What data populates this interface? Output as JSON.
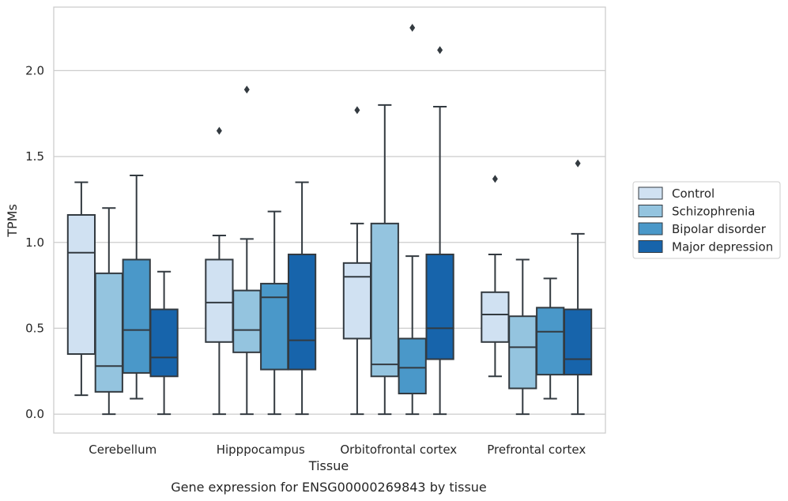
{
  "chart_data": {
    "type": "box",
    "title": "",
    "caption": "Gene expression for ENSG00000269843 by tissue",
    "xlabel": "Tissue",
    "ylabel": "TPMs",
    "ylim": [
      -0.11,
      2.37
    ],
    "yticks": [
      0.0,
      0.5,
      1.0,
      1.5,
      2.0
    ],
    "ytick_labels": [
      "0.0",
      "0.5",
      "1.0",
      "1.5",
      "2.0"
    ],
    "grid": "horizontal",
    "legend_position": "right",
    "categories": [
      "Cerebellum",
      "Hipppocampus",
      "Orbitofrontal cortex",
      "Prefrontal cortex"
    ],
    "series": [
      {
        "name": "Control",
        "color": "#d0e1f2",
        "boxes": [
          {
            "min": 0.11,
            "q1": 0.35,
            "median": 0.94,
            "q3": 1.16,
            "max": 1.35,
            "outliers": []
          },
          {
            "min": 0.0,
            "q1": 0.42,
            "median": 0.65,
            "q3": 0.9,
            "max": 1.04,
            "outliers": [
              1.65
            ]
          },
          {
            "min": 0.0,
            "q1": 0.44,
            "median": 0.8,
            "q3": 0.88,
            "max": 1.11,
            "outliers": [
              1.77
            ]
          },
          {
            "min": 0.22,
            "q1": 0.42,
            "median": 0.58,
            "q3": 0.71,
            "max": 0.93,
            "outliers": [
              1.37
            ]
          }
        ]
      },
      {
        "name": "Schizophrenia",
        "color": "#94c4df",
        "boxes": [
          {
            "min": 0.0,
            "q1": 0.13,
            "median": 0.28,
            "q3": 0.82,
            "max": 1.2,
            "outliers": []
          },
          {
            "min": 0.0,
            "q1": 0.36,
            "median": 0.49,
            "q3": 0.72,
            "max": 1.02,
            "outliers": [
              1.89
            ]
          },
          {
            "min": 0.0,
            "q1": 0.22,
            "median": 0.29,
            "q3": 1.11,
            "max": 1.8,
            "outliers": []
          },
          {
            "min": 0.0,
            "q1": 0.15,
            "median": 0.39,
            "q3": 0.57,
            "max": 0.9,
            "outliers": []
          }
        ]
      },
      {
        "name": "Bipolar disorder",
        "color": "#4a98c9",
        "boxes": [
          {
            "min": 0.09,
            "q1": 0.24,
            "median": 0.49,
            "q3": 0.9,
            "max": 1.39,
            "outliers": []
          },
          {
            "min": 0.0,
            "q1": 0.26,
            "median": 0.68,
            "q3": 0.76,
            "max": 1.18,
            "outliers": []
          },
          {
            "min": 0.0,
            "q1": 0.12,
            "median": 0.27,
            "q3": 0.44,
            "max": 0.92,
            "outliers": [
              2.25
            ]
          },
          {
            "min": 0.09,
            "q1": 0.23,
            "median": 0.48,
            "q3": 0.62,
            "max": 0.79,
            "outliers": []
          }
        ]
      },
      {
        "name": "Major depression",
        "color": "#1764ab",
        "boxes": [
          {
            "min": 0.0,
            "q1": 0.22,
            "median": 0.33,
            "q3": 0.61,
            "max": 0.83,
            "outliers": []
          },
          {
            "min": 0.0,
            "q1": 0.26,
            "median": 0.43,
            "q3": 0.93,
            "max": 1.35,
            "outliers": []
          },
          {
            "min": 0.0,
            "q1": 0.32,
            "median": 0.5,
            "q3": 0.93,
            "max": 1.79,
            "outliers": [
              2.12
            ]
          },
          {
            "min": 0.0,
            "q1": 0.23,
            "median": 0.32,
            "q3": 0.61,
            "max": 1.05,
            "outliers": [
              1.46
            ]
          }
        ]
      }
    ]
  }
}
